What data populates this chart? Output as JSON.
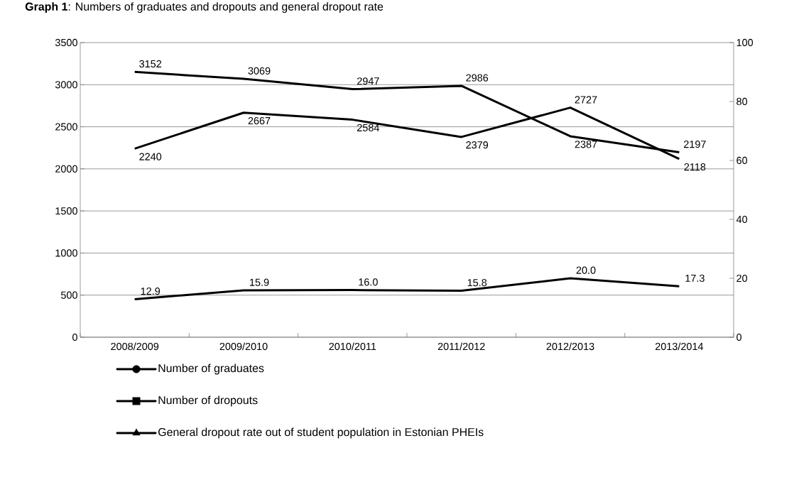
{
  "chart_data": {
    "type": "line",
    "title": "**Graph 1**: Numbers of graduates and dropouts and general dropout rate",
    "categories": [
      "2008/2009",
      "2009/2010",
      "2010/2011",
      "2011/2012",
      "2012/2013",
      "2013/2014"
    ],
    "series": [
      {
        "name": "Number of graduates",
        "color": "#000000",
        "values": [
          3152,
          3069,
          2947,
          2986,
          2387,
          2197
        ]
      },
      {
        "name": "Number of dropouts",
        "color": "#000000",
        "values": [
          2240,
          2667,
          2584,
          2379,
          2727,
          2118
        ]
      },
      {
        "name": "General dropout rate out of student population in Estonian PHEIs",
        "color": "#000000",
        "axis": "y2",
        "values": [
          12.9,
          15.9,
          16.0,
          15.8,
          20.0,
          17.3
        ],
        "value_labels": [
          "12.9",
          "15.9",
          "16.0",
          "15.8",
          "20.0",
          "17.3"
        ]
      }
    ],
    "ylim": [
      0,
      3500
    ],
    "yticks": [
      0,
      500,
      1000,
      1500,
      2000,
      2500,
      3000,
      3500
    ],
    "y2lim": [
      0,
      100
    ],
    "y2ticks": [
      0,
      20,
      40,
      60,
      80,
      100
    ],
    "grid": "y",
    "data_labels": true,
    "legend": "bottom",
    "line_style": "solid"
  }
}
